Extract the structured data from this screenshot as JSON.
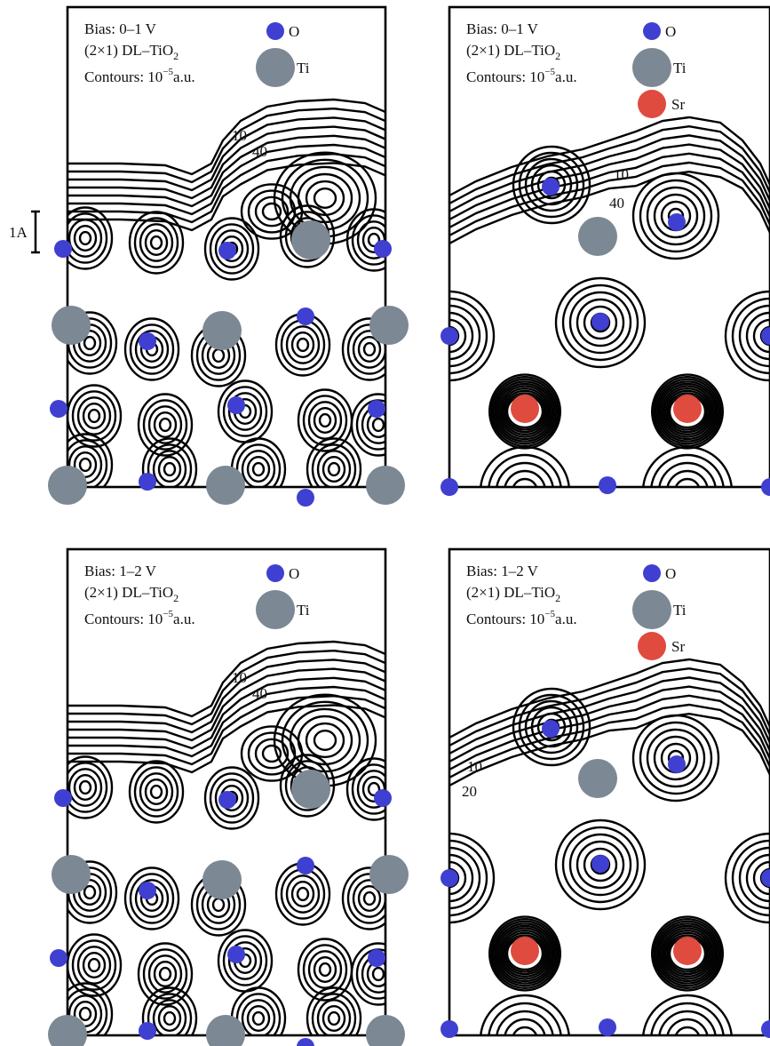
{
  "colors": {
    "oxygen": "#3f3fd2",
    "titanium": "#7c8893",
    "strontium": "#e04b3f",
    "contour": "#000000"
  },
  "scale_bar": {
    "label": "1A"
  },
  "legend": {
    "o": "O",
    "ti": "Ti",
    "sr": "Sr"
  },
  "panels": [
    {
      "id": "top-left",
      "bias": "Bias: 0–1 V",
      "surface": "(2×1) DL–TiO",
      "surface_sub": "2",
      "contours_prefix": "Contours: 10",
      "contours_exp": "−5",
      "contours_suffix": "a.u.",
      "contour_labels": [
        "10",
        "40"
      ],
      "has_sr": false
    },
    {
      "id": "top-right",
      "bias": "Bias: 0–1 V",
      "surface": "(2×1) DL–TiO",
      "surface_sub": "2",
      "contours_prefix": "Contours: 10",
      "contours_exp": "−5",
      "contours_suffix": "a.u.",
      "contour_labels": [
        "10",
        "40"
      ],
      "has_sr": true
    },
    {
      "id": "bottom-left",
      "bias": "Bias: 1–2 V",
      "surface": "(2×1) DL–TiO",
      "surface_sub": "2",
      "contours_prefix": "Contours: 10",
      "contours_exp": "−5",
      "contours_suffix": "a.u.",
      "contour_labels": [
        "10",
        "40"
      ],
      "has_sr": false
    },
    {
      "id": "bottom-right",
      "bias": "Bias: 1–2 V",
      "surface": "(2×1) DL–TiO",
      "surface_sub": "2",
      "contours_prefix": "Contours: 10",
      "contours_exp": "−5",
      "contours_suffix": "a.u.",
      "contour_labels": [
        "10",
        "20"
      ],
      "has_sr": true
    }
  ]
}
